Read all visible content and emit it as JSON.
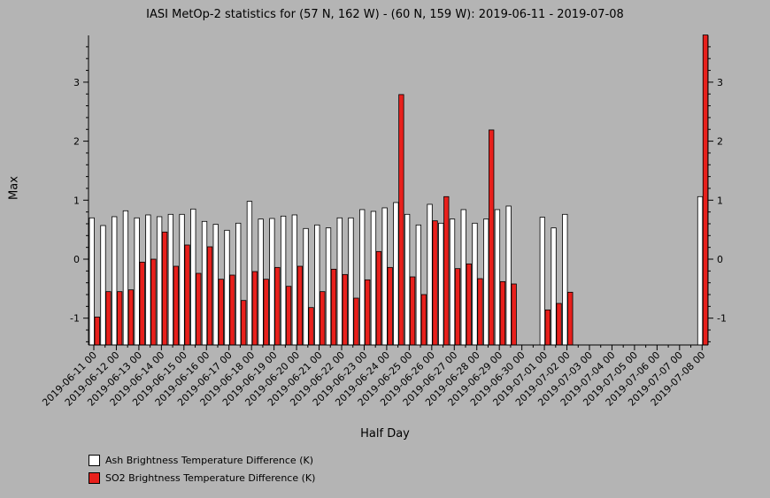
{
  "chart_data": {
    "type": "bar",
    "title": "IASI MetOp-2 statistics for (57 N, 162 W) - (60 N, 159 W): 2019-06-11 - 2019-07-08",
    "xlabel": "Half Day",
    "ylabel": "Max",
    "ylim": [
      -1.45,
      3.8
    ],
    "yticks": [
      -1,
      0,
      1,
      2,
      3
    ],
    "xtick_labels": [
      "2019-06-11 00",
      "2019-06-12 00",
      "2019-06-13 00",
      "2019-06-14 00",
      "2019-06-15 00",
      "2019-06-16 00",
      "2019-06-17 00",
      "2019-06-18 00",
      "2019-06-19 00",
      "2019-06-20 00",
      "2019-06-21 00",
      "2019-06-22 00",
      "2019-06-23 00",
      "2019-06-24 00",
      "2019-06-25 00",
      "2019-06-26 00",
      "2019-06-27 00",
      "2019-06-28 00",
      "2019-06-29 00",
      "2019-06-30 00",
      "2019-07-01 00",
      "2019-07-02 00",
      "2019-07-03 00",
      "2019-07-04 00",
      "2019-07-05 00",
      "2019-07-06 00",
      "2019-07-07 00",
      "2019-07-08 00"
    ],
    "series": [
      {
        "name": "Ash Brightness Temperature Difference (K)",
        "color": "#ffffff",
        "values": [
          0.7,
          0.57,
          0.72,
          0.82,
          0.7,
          0.75,
          0.72,
          0.76,
          0.76,
          0.85,
          0.64,
          0.59,
          0.49,
          0.61,
          0.98,
          0.68,
          0.69,
          0.73,
          0.75,
          0.52,
          0.58,
          0.53,
          0.7,
          0.7,
          0.84,
          0.81,
          0.87,
          0.96,
          0.76,
          0.58,
          0.93,
          0.61,
          0.68,
          0.84,
          0.61,
          0.68,
          0.84,
          0.9,
          null,
          null,
          0.71,
          0.53,
          0.76,
          null,
          null,
          null,
          null,
          null,
          null,
          null,
          null,
          null,
          null,
          null,
          1.06
        ]
      },
      {
        "name": "SO2 Brightness Temperature Difference (K)",
        "color": "#e8201c",
        "values": [
          -0.98,
          -0.55,
          -0.55,
          -0.52,
          -0.05,
          0.0,
          0.46,
          -0.12,
          0.24,
          -0.24,
          0.21,
          -0.34,
          -0.27,
          -0.7,
          -0.21,
          -0.34,
          -0.14,
          -0.46,
          -0.12,
          -0.82,
          -0.55,
          -0.17,
          -0.26,
          -0.66,
          -0.35,
          0.13,
          -0.14,
          2.79,
          -0.3,
          -0.6,
          0.65,
          1.06,
          -0.16,
          -0.08,
          -0.33,
          2.19,
          -0.38,
          -0.42,
          null,
          null,
          -0.86,
          -0.75,
          -0.56,
          null,
          null,
          null,
          null,
          null,
          null,
          null,
          null,
          null,
          null,
          null,
          3.8
        ]
      }
    ],
    "legend_position": "bottom-left"
  }
}
